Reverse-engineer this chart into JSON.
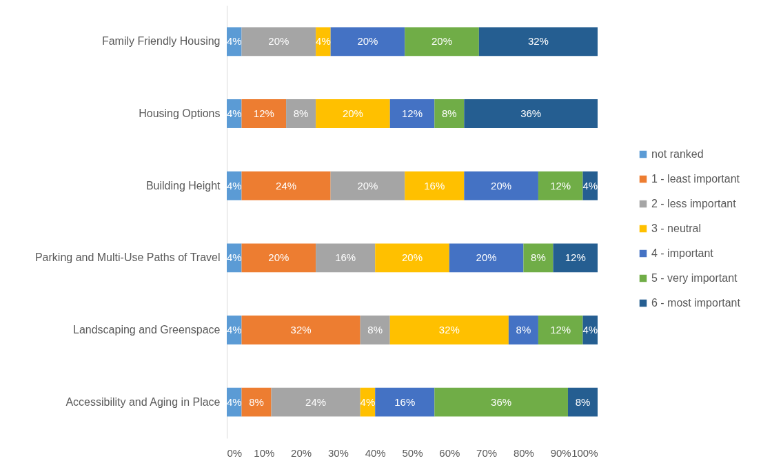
{
  "chart_data": {
    "type": "bar",
    "orientation": "horizontal",
    "stacked": true,
    "legend": "right",
    "grid": false,
    "categories": [
      "Family Friendly Housing",
      "Housing Options",
      "Building Height",
      "Parking and Multi-Use Paths of Travel",
      "Landscaping and Greenspace",
      "Accessibility and Aging in Place"
    ],
    "xlim": [
      0,
      100
    ],
    "xticks": [
      {
        "value": 0,
        "label": "0%"
      },
      {
        "value": 10,
        "label": "10%"
      },
      {
        "value": 20,
        "label": "20%"
      },
      {
        "value": 30,
        "label": "30%"
      },
      {
        "value": 40,
        "label": "40%"
      },
      {
        "value": 50,
        "label": "50%"
      },
      {
        "value": 60,
        "label": "60%"
      },
      {
        "value": 70,
        "label": "70%"
      },
      {
        "value": 80,
        "label": "80%"
      },
      {
        "value": 90,
        "label": "90%"
      },
      {
        "value": 100,
        "label": "100%"
      }
    ],
    "series": [
      {
        "name": "not ranked",
        "color": "#5b9bd5",
        "values": [
          4,
          4,
          4,
          4,
          4,
          4
        ],
        "value_labels": [
          "4%",
          "4%",
          "4%",
          "4%",
          "4%",
          "4%"
        ]
      },
      {
        "name": "1 - least important",
        "color": "#ed7d31",
        "values": [
          null,
          12,
          24,
          20,
          32,
          8
        ],
        "value_labels": [
          null,
          "12%",
          "24%",
          "20%",
          "32%",
          "8%"
        ]
      },
      {
        "name": "2 - less important",
        "color": "#a5a5a5",
        "values": [
          20,
          8,
          20,
          16,
          8,
          24
        ],
        "value_labels": [
          "20%",
          "8%",
          "20%",
          "16%",
          "8%",
          "24%"
        ]
      },
      {
        "name": "3 - neutral",
        "color": "#ffc000",
        "values": [
          4,
          20,
          16,
          20,
          32,
          4
        ],
        "value_labels": [
          "4%",
          "20%",
          "16%",
          "20%",
          "32%",
          "4%"
        ]
      },
      {
        "name": "4 - important",
        "color": "#4472c4",
        "values": [
          20,
          12,
          20,
          20,
          8,
          16
        ],
        "value_labels": [
          "20%",
          "12%",
          "20%",
          "20%",
          "8%",
          "16%"
        ]
      },
      {
        "name": "5 - very important",
        "color": "#70ad47",
        "values": [
          20,
          8,
          12,
          8,
          12,
          36
        ],
        "value_labels": [
          "20%",
          "8%",
          "12%",
          "8%",
          "12%",
          "36%"
        ]
      },
      {
        "name": "6 - most important",
        "color": "#255e91",
        "values": [
          32,
          36,
          4,
          12,
          4,
          8
        ],
        "value_labels": [
          "32%",
          "36%",
          "4%",
          "12%",
          "4%",
          "8%"
        ]
      }
    ]
  }
}
